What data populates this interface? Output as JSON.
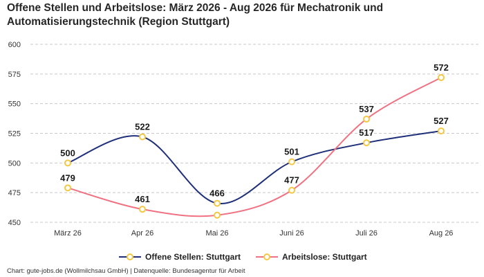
{
  "chart_data": {
    "type": "line",
    "title": "Offene Stellen und Arbeitslose: März 2026 - Aug 2026 für Mechatronik und Automatisierungstechnik (Region Stuttgart)",
    "categories": [
      "März 26",
      "Apr 26",
      "Mai 26",
      "Juni 26",
      "Juli 26",
      "Aug 26"
    ],
    "ylim": [
      450,
      600
    ],
    "yticks": [
      "450",
      "475",
      "500",
      "525",
      "550",
      "575",
      "600"
    ],
    "grid": true,
    "legend_position": "bottom",
    "series": [
      {
        "name": "Offene Stellen: Stuttgart",
        "values": [
          500,
          522,
          466,
          501,
          517,
          527
        ],
        "color": "#1f2f7a"
      },
      {
        "name": "Arbeitslose: Stuttgart",
        "values": [
          479,
          461,
          456,
          477,
          537,
          572
        ],
        "labels": [
          "479",
          "461",
          "",
          "477",
          "537",
          "572"
        ],
        "color": "#f07282"
      }
    ],
    "marker_color": "#f4c842"
  },
  "footer": "Chart: gute-jobs.de (Wollmilchsau GmbH) | Datenquelle: Bundesagentur für Arbeit"
}
